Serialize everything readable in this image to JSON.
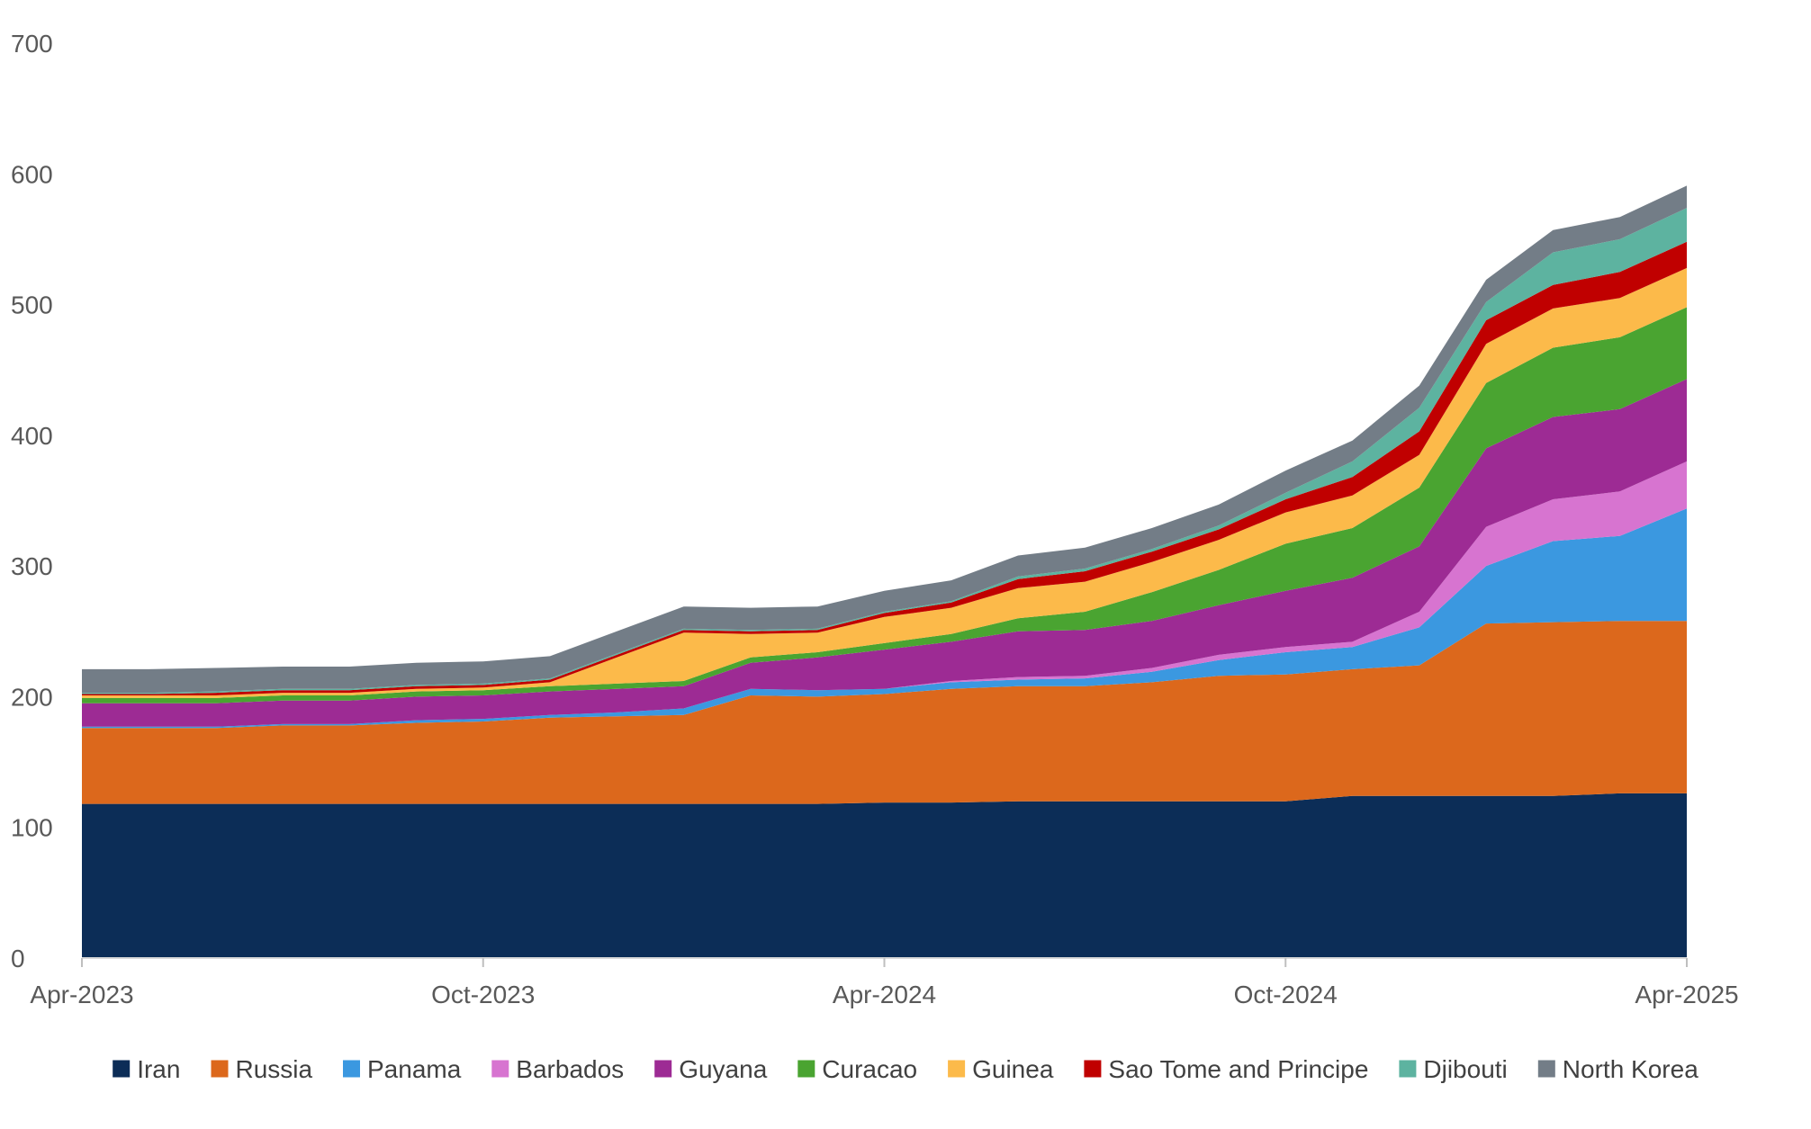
{
  "chart_data": {
    "type": "area",
    "stacked": true,
    "x": [
      "Apr-2023",
      "May-2023",
      "Jun-2023",
      "Jul-2023",
      "Aug-2023",
      "Sep-2023",
      "Oct-2023",
      "Nov-2023",
      "Dec-2023",
      "Jan-2024",
      "Feb-2024",
      "Mar-2024",
      "Apr-2024",
      "May-2024",
      "Jun-2024",
      "Jul-2024",
      "Aug-2024",
      "Sep-2024",
      "Oct-2024",
      "Nov-2024",
      "Dec-2024",
      "Jan-2025",
      "Feb-2025",
      "Mar-2025",
      "Apr-2025"
    ],
    "x_tick_labels": [
      "Apr-2023",
      "Oct-2023",
      "Apr-2024",
      "Oct-2024",
      "Apr-2025"
    ],
    "y_tick_labels": [
      "0",
      "100",
      "200",
      "300",
      "400",
      "500",
      "600",
      "700"
    ],
    "ylim": [
      0,
      700
    ],
    "grid": false,
    "legend_position": "bottom",
    "series": [
      {
        "name": "Iran",
        "color": "#0c2d57",
        "values": [
          118,
          118,
          118,
          118,
          118,
          118,
          118,
          118,
          118,
          118,
          118,
          118,
          119,
          119,
          120,
          120,
          120,
          120,
          120,
          124,
          124,
          124,
          124,
          126,
          126
        ]
      },
      {
        "name": "Russia",
        "color": "#dc681c",
        "values": [
          58,
          58,
          58,
          60,
          60,
          62,
          63,
          66,
          67,
          68,
          83,
          82,
          83,
          87,
          88,
          88,
          91,
          96,
          97,
          97,
          100,
          132,
          133,
          132,
          132
        ]
      },
      {
        "name": "Panama",
        "color": "#3b98e0",
        "values": [
          1,
          1,
          1,
          1,
          1,
          2,
          2,
          2,
          3,
          5,
          5,
          5,
          4,
          5,
          5,
          6,
          8,
          12,
          17,
          17,
          29,
          44,
          62,
          65,
          86
        ]
      },
      {
        "name": "Barbados",
        "color": "#d774d0",
        "values": [
          0,
          0,
          0,
          0,
          0,
          0,
          0,
          0,
          0,
          0,
          0,
          0,
          0,
          1,
          2,
          2,
          3,
          4,
          4,
          4,
          12,
          30,
          32,
          34,
          36
        ]
      },
      {
        "name": "Guyana",
        "color": "#9d2b94",
        "values": [
          18,
          18,
          18,
          18,
          18,
          18,
          18,
          18,
          18,
          17,
          20,
          25,
          30,
          30,
          35,
          35,
          36,
          38,
          43,
          49,
          50,
          60,
          63,
          63,
          63
        ]
      },
      {
        "name": "Curacao",
        "color": "#4aa431",
        "values": [
          4,
          4,
          4,
          4,
          4,
          4,
          4,
          4,
          4,
          4,
          4,
          4,
          5,
          6,
          10,
          14,
          22,
          27,
          36,
          38,
          45,
          50,
          53,
          55,
          55
        ]
      },
      {
        "name": "Guinea",
        "color": "#fcba4a",
        "values": [
          2,
          2,
          2,
          2,
          2,
          2,
          2,
          3,
          20,
          37,
          18,
          15,
          20,
          20,
          23,
          23,
          23,
          23,
          24,
          25,
          25,
          30,
          30,
          30,
          30
        ]
      },
      {
        "name": "Sao Tome and Principe",
        "color": "#c00000",
        "values": [
          1,
          1,
          2,
          2,
          2,
          2,
          2,
          2,
          2,
          2,
          2,
          2,
          3,
          4,
          7,
          8,
          8,
          8,
          10,
          14,
          18,
          18,
          18,
          20,
          20
        ]
      },
      {
        "name": "Djibouti",
        "color": "#5db3a0",
        "values": [
          1,
          1,
          1,
          1,
          1,
          1,
          1,
          1,
          1,
          1,
          1,
          1,
          1,
          1,
          2,
          2,
          2,
          3,
          5,
          12,
          18,
          14,
          25,
          25,
          26
        ]
      },
      {
        "name": "North Korea",
        "color": "#737d87",
        "values": [
          18,
          18,
          18,
          17,
          17,
          17,
          17,
          17,
          17,
          17,
          17,
          17,
          16,
          16,
          16,
          16,
          16,
          16,
          17,
          16,
          17,
          17,
          17,
          17,
          17
        ]
      }
    ]
  }
}
